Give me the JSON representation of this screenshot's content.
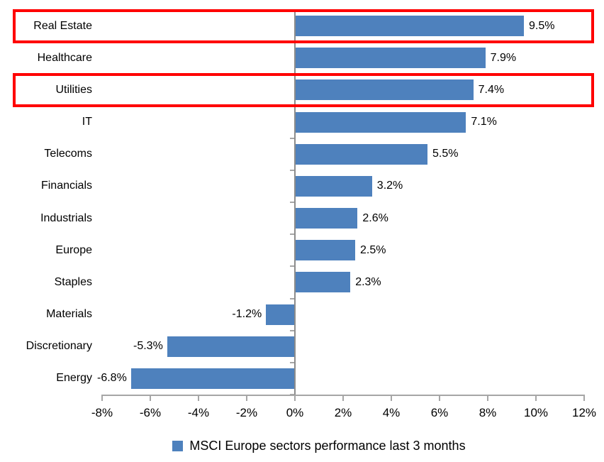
{
  "chart_data": {
    "type": "bar",
    "orientation": "horizontal",
    "categories": [
      "Real Estate",
      "Healthcare",
      "Utilities",
      "IT",
      "Telecoms",
      "Financials",
      "Industrials",
      "Europe",
      "Staples",
      "Materials",
      "Discretionary",
      "Energy"
    ],
    "values": [
      9.5,
      7.9,
      7.4,
      7.1,
      5.5,
      3.2,
      2.6,
      2.5,
      2.3,
      -1.2,
      -5.3,
      -6.8
    ],
    "value_labels": [
      "9.5%",
      "7.9%",
      "7.4%",
      "7.1%",
      "5.5%",
      "3.2%",
      "2.6%",
      "2.5%",
      "2.3%",
      "-1.2%",
      "-5.3%",
      "-6.8%"
    ],
    "title": "",
    "xlabel": "",
    "ylabel": "",
    "xlim": [
      -8,
      12
    ],
    "xticks": [
      -8,
      -6,
      -4,
      -2,
      0,
      2,
      4,
      6,
      8,
      10,
      12
    ],
    "xtick_labels": [
      "-8%",
      "-6%",
      "-4%",
      "-2%",
      "0%",
      "2%",
      "4%",
      "6%",
      "8%",
      "10%",
      "12%"
    ],
    "grid": false,
    "legend_position": "bottom",
    "series_name": "MSCI Europe sectors performance last 3 months",
    "highlighted_categories": [
      "Real Estate",
      "Utilities"
    ],
    "highlighted_indices": [
      0,
      2
    ]
  },
  "legend": {
    "label": "MSCI Europe sectors performance last 3 months"
  },
  "colors": {
    "bar": "#4E81BD",
    "highlight_box": "#FF0000",
    "axis_line": "#A6A6A6",
    "zero_line": "#8C8C8C",
    "text": "#000000",
    "legend_swatch": "#4E81BD"
  }
}
